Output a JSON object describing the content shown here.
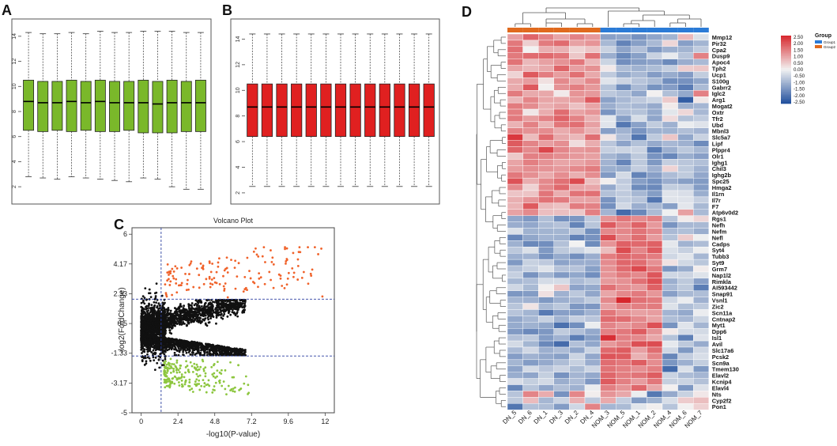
{
  "colors": {
    "green_box": "#7ab82a",
    "red_box": "#e02020",
    "volcano_up": "#f0622a",
    "volcano_down": "#8dc63f",
    "volcano_ns": "#111111",
    "threshold_line": "#2b3fa0",
    "heat_high": "#d7262c",
    "heat_mid": "#f2f2f2",
    "heat_low": "#1f4e9c",
    "group1": "#2b7bd6",
    "group2": "#e06a1e"
  },
  "chart_data": [
    {
      "panel": "A",
      "type": "box",
      "title": "",
      "ylim": [
        1,
        15
      ],
      "y_ticks": [
        "2",
        "4",
        "6",
        "8",
        "10",
        "12",
        "14"
      ],
      "boxes": [
        {
          "whisker_low": 2.8,
          "q1": 6.5,
          "median": 8.8,
          "q3": 10.5,
          "whisker_high": 14.3
        },
        {
          "whisker_low": 2.7,
          "q1": 6.4,
          "median": 8.7,
          "q3": 10.4,
          "whisker_high": 14.2
        },
        {
          "whisker_low": 2.6,
          "q1": 6.5,
          "median": 8.7,
          "q3": 10.4,
          "whisker_high": 14.2
        },
        {
          "whisker_low": 2.8,
          "q1": 6.4,
          "median": 8.8,
          "q3": 10.5,
          "whisker_high": 14.3
        },
        {
          "whisker_low": 2.7,
          "q1": 6.5,
          "median": 8.7,
          "q3": 10.4,
          "whisker_high": 14.2
        },
        {
          "whisker_low": 2.6,
          "q1": 6.4,
          "median": 8.8,
          "q3": 10.5,
          "whisker_high": 14.4
        },
        {
          "whisker_low": 2.5,
          "q1": 6.4,
          "median": 8.7,
          "q3": 10.4,
          "whisker_high": 14.3
        },
        {
          "whisker_low": 2.4,
          "q1": 6.5,
          "median": 8.7,
          "q3": 10.4,
          "whisker_high": 14.3
        },
        {
          "whisker_low": 2.7,
          "q1": 6.3,
          "median": 8.7,
          "q3": 10.5,
          "whisker_high": 14.4
        },
        {
          "whisker_low": 2.6,
          "q1": 6.3,
          "median": 8.6,
          "q3": 10.4,
          "whisker_high": 14.4
        },
        {
          "whisker_low": 2.0,
          "q1": 6.3,
          "median": 8.7,
          "q3": 10.5,
          "whisker_high": 14.4
        },
        {
          "whisker_low": 1.8,
          "q1": 6.4,
          "median": 8.7,
          "q3": 10.4,
          "whisker_high": 14.3
        },
        {
          "whisker_low": 1.8,
          "q1": 6.4,
          "median": 8.7,
          "q3": 10.5,
          "whisker_high": 14.3
        }
      ]
    },
    {
      "panel": "B",
      "type": "box",
      "title": "",
      "ylim": [
        1.5,
        15.2
      ],
      "y_ticks": [
        "2",
        "4",
        "6",
        "8",
        "10",
        "12",
        "14"
      ],
      "boxes": [
        {
          "whisker_low": 2.5,
          "q1": 6.4,
          "median": 8.7,
          "q3": 10.5,
          "whisker_high": 14.4
        },
        {
          "whisker_low": 2.5,
          "q1": 6.4,
          "median": 8.7,
          "q3": 10.5,
          "whisker_high": 14.4
        },
        {
          "whisker_low": 2.5,
          "q1": 6.4,
          "median": 8.7,
          "q3": 10.5,
          "whisker_high": 14.4
        },
        {
          "whisker_low": 2.5,
          "q1": 6.4,
          "median": 8.7,
          "q3": 10.5,
          "whisker_high": 14.4
        },
        {
          "whisker_low": 2.5,
          "q1": 6.4,
          "median": 8.7,
          "q3": 10.5,
          "whisker_high": 14.4
        },
        {
          "whisker_low": 2.5,
          "q1": 6.4,
          "median": 8.7,
          "q3": 10.5,
          "whisker_high": 14.4
        },
        {
          "whisker_low": 2.5,
          "q1": 6.4,
          "median": 8.7,
          "q3": 10.5,
          "whisker_high": 14.4
        },
        {
          "whisker_low": 2.5,
          "q1": 6.4,
          "median": 8.7,
          "q3": 10.5,
          "whisker_high": 14.4
        },
        {
          "whisker_low": 2.5,
          "q1": 6.4,
          "median": 8.7,
          "q3": 10.5,
          "whisker_high": 14.4
        },
        {
          "whisker_low": 2.5,
          "q1": 6.4,
          "median": 8.7,
          "q3": 10.5,
          "whisker_high": 14.4
        },
        {
          "whisker_low": 2.5,
          "q1": 6.4,
          "median": 8.7,
          "q3": 10.5,
          "whisker_high": 14.4
        },
        {
          "whisker_low": 2.5,
          "q1": 6.4,
          "median": 8.7,
          "q3": 10.5,
          "whisker_high": 14.4
        },
        {
          "whisker_low": 2.5,
          "q1": 6.4,
          "median": 8.7,
          "q3": 10.5,
          "whisker_high": 14.4
        }
      ]
    },
    {
      "panel": "C",
      "type": "scatter",
      "title": "Volcano Plot",
      "xlabel": "-log10(P-value)",
      "ylabel": "-log2(FoldChange)",
      "xlim": [
        -0.6,
        12.6
      ],
      "ylim": [
        -5,
        6.4
      ],
      "x_ticks": [
        "0",
        "2.4",
        "4.8",
        "7.2",
        "9.6",
        "12"
      ],
      "y_ticks": [
        "6",
        "4.17",
        "2.33",
        "0.5",
        "-1.33",
        "-3.17",
        "-5"
      ],
      "threshold_x": 1.3,
      "threshold_y": [
        2,
        -1.5
      ],
      "seed": 7
    },
    {
      "panel": "D",
      "type": "heatmap",
      "columns": [
        "DN_5",
        "DN_6",
        "DN_1",
        "DN_3",
        "DN_2",
        "DN_4",
        "NOM_3",
        "NOM_5",
        "NOM_1",
        "NOM_2",
        "NOM_4",
        "NOM_6",
        "NOM_7"
      ],
      "column_groups": [
        2,
        2,
        2,
        2,
        2,
        2,
        1,
        1,
        1,
        1,
        1,
        1,
        1
      ],
      "rows": [
        "Mmp12",
        "Pir32",
        "Cpa2",
        "Dusp9",
        "Apoc4",
        "Tph2",
        "Ucp1",
        "S100g",
        "Gabrr2",
        "Iglc2",
        "Arg1",
        "Mogat2",
        "Oxtr",
        "Tfr2",
        "Ubd",
        "Mbnl3",
        "Slc5a7",
        "Lipf",
        "Plppr4",
        "Olr1",
        "Ighg1",
        "Chil3",
        "Ighg2b",
        "Spc25",
        "Hmga2",
        "Il1rn",
        "Il7r",
        "F7",
        "Atp6v0d2",
        "Rgs1",
        "Nefh",
        "Nefm",
        "Nefl",
        "Cadps",
        "Syt4",
        "Tubb3",
        "Syt9",
        "Grm7",
        "Nap1l2",
        "Rimkla",
        "AI593442",
        "Snap91",
        "Vsnl1",
        "Zic2",
        "Scn11a",
        "Cntnap2",
        "Myt1",
        "Dpp6",
        "Isl1",
        "Avil",
        "Slc17a6",
        "Pcsk2",
        "Scn9a",
        "Tmem130",
        "Elavl2",
        "Kcnip4",
        "Elavl4",
        "Nts",
        "Cyp2f2",
        "Pon1"
      ],
      "row_cluster_split": 29,
      "legend_ticks": [
        "2.50",
        "2.00",
        "1.50",
        "1.00",
        "0.50",
        "0.00",
        "-0.50",
        "-1.00",
        "-1.50",
        "-2.00",
        "-2.50"
      ],
      "legend_range": [
        -2.5,
        2.5
      ],
      "group_legend_title": "Group",
      "group_legend": [
        "Group1",
        "Group2"
      ],
      "seed": 11
    }
  ],
  "panel_labels": {
    "a": "A",
    "b": "B",
    "c": "C",
    "d": "D"
  }
}
